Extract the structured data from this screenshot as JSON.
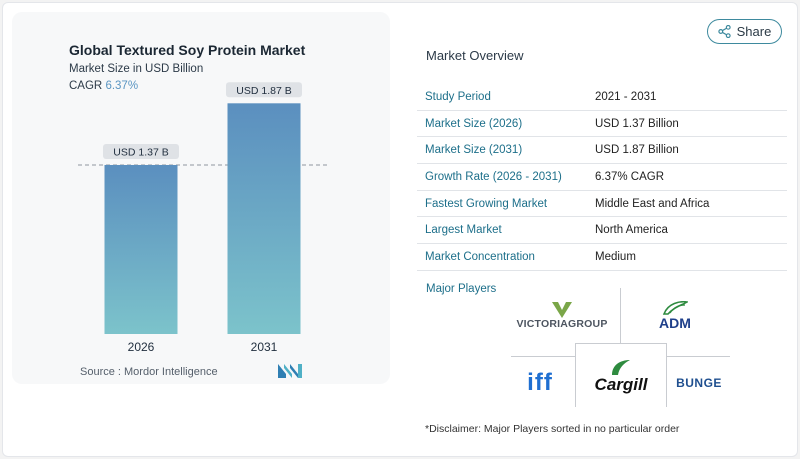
{
  "share": {
    "label": "Share",
    "icon": "share-icon"
  },
  "chart": {
    "title": "Global Textured Soy Protein Market",
    "subtitle": "Market Size in USD Billion",
    "cagr_label": "CAGR",
    "cagr_value": "6.37%",
    "source": "Source :  Mordor Intelligence",
    "colors": {
      "bar_top": "#5b8fbf",
      "bar_bottom": "#7cc3cb",
      "label_bg": "#dfe2e6"
    }
  },
  "chart_data": {
    "type": "bar",
    "categories": [
      "2026",
      "2031"
    ],
    "values": [
      1.37,
      1.87
    ],
    "data_labels": [
      "USD 1.37 B",
      "USD 1.87 B"
    ],
    "title": "Global Textured Soy Protein Market",
    "subtitle": "Market Size in USD Billion",
    "xlabel": "",
    "ylabel": "",
    "ylim": [
      0,
      2.14
    ],
    "grid": false,
    "reference_line": 1.37
  },
  "overview": {
    "title": "Market Overview",
    "rows": [
      {
        "key": "Study Period",
        "value": "2021 - 2031"
      },
      {
        "key": "Market Size (2026)",
        "value": "USD 1.37 Billion"
      },
      {
        "key": "Market Size (2031)",
        "value": "USD 1.87 Billion"
      },
      {
        "key": "Growth Rate (2026 - 2031)",
        "value": "6.37% CAGR"
      },
      {
        "key": "Fastest Growing Market",
        "value": "Middle East and Africa"
      },
      {
        "key": "Largest Market",
        "value": "North America"
      },
      {
        "key": "Market Concentration",
        "value": "Medium"
      }
    ]
  },
  "players": {
    "title": "Major Players",
    "items": [
      "VICTORIAGROUP",
      "ADM",
      "iff",
      "Cargill",
      "BUNGE"
    ]
  },
  "disclaimer": "*Disclaimer: Major Players sorted in no particular order"
}
